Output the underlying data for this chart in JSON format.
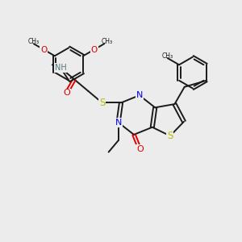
{
  "background_color": "#ececec",
  "bond_color": "#1a1a1a",
  "N_color": "#0000ee",
  "O_color": "#dd0000",
  "S_color": "#bbbb00",
  "H_color": "#557777",
  "figsize": [
    3.0,
    3.0
  ],
  "dpi": 100,
  "xlim": [
    0,
    10
  ],
  "ylim": [
    0,
    10
  ]
}
